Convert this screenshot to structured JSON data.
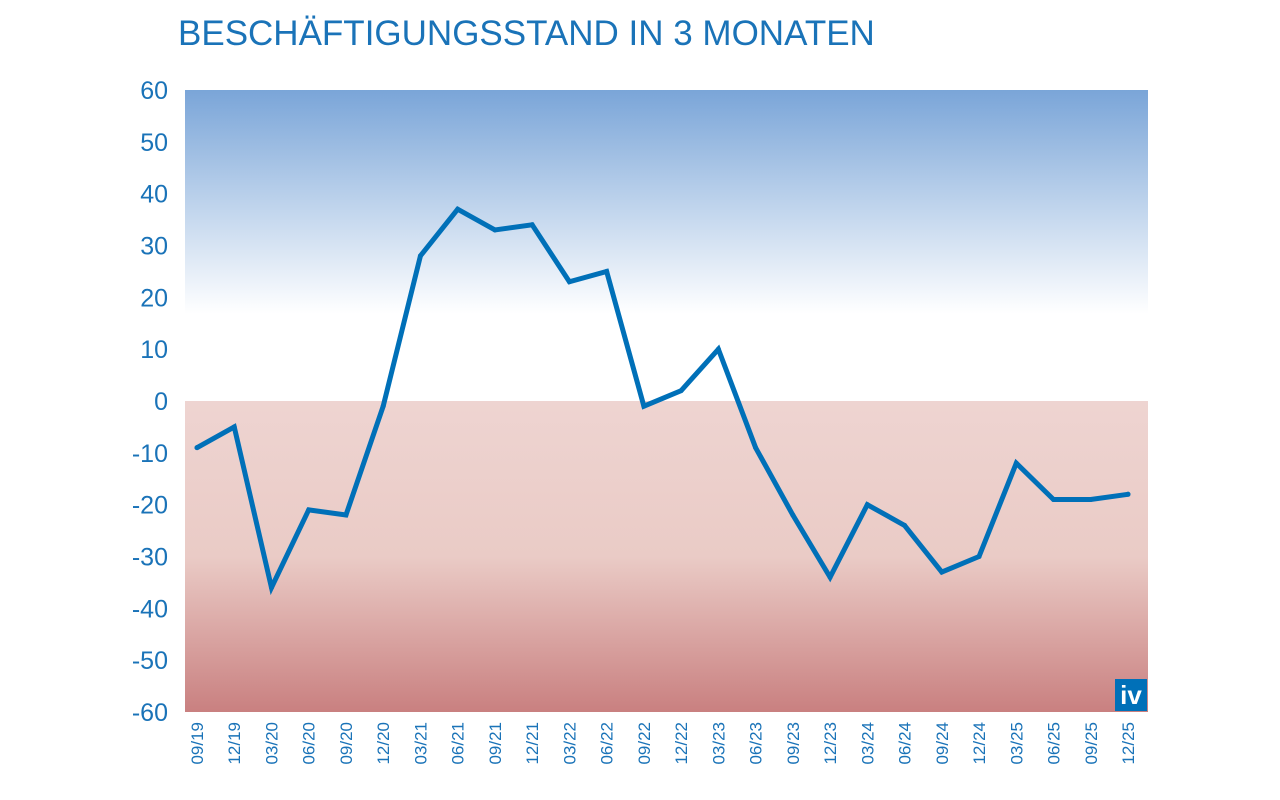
{
  "chart_data": {
    "type": "line",
    "title": "BESCHÄFTIGUNGSSTAND IN 3 MONATEN",
    "xlabel": "",
    "ylabel": "",
    "ylim": [
      -60,
      60
    ],
    "yticks": [
      "60",
      "50",
      "40",
      "30",
      "20",
      "10",
      "0",
      "-10",
      "-20",
      "-30",
      "-40",
      "-50",
      "-60"
    ],
    "categories": [
      "09/19",
      "12/19",
      "03/20",
      "06/20",
      "09/20",
      "12/20",
      "03/21",
      "06/21",
      "09/21",
      "12/21",
      "03/22",
      "06/22",
      "09/22",
      "12/22",
      "03/23",
      "06/23",
      "09/23",
      "12/23",
      "03/24",
      "06/24",
      "09/24",
      "12/24",
      "03/25",
      "06/25",
      "09/25",
      "12/25"
    ],
    "values": [
      -9,
      -5,
      -36,
      -21,
      -22,
      -1,
      28,
      37,
      33,
      34,
      23,
      25,
      -1,
      2,
      10,
      -9,
      -22,
      -34,
      -20,
      -24,
      -33,
      -30,
      -12,
      -19,
      -19,
      -18
    ],
    "grid": false,
    "line_color": "#0070b8",
    "background": {
      "positive_color": "#7aa5d8",
      "negative_color": "#c98080"
    },
    "logo": "iv"
  }
}
